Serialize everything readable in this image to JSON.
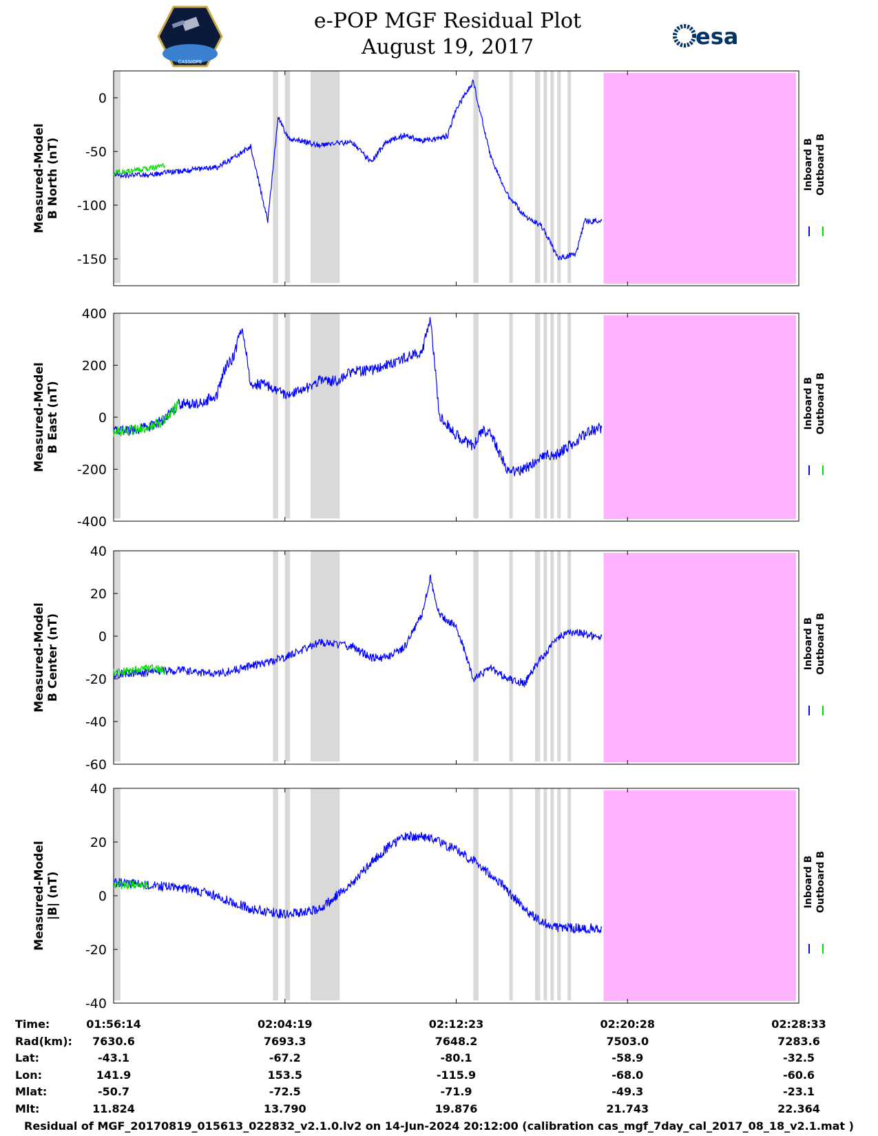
{
  "header": {
    "title_line1": "e-POP MGF Residual Plot",
    "title_line2": "August 19, 2017",
    "left_logo_caption": "CASSIOPE",
    "right_logo_text": "esa"
  },
  "colors": {
    "inboard": "#0000ff",
    "outboard": "#00dd00",
    "gap_shade": "#d9d9d9",
    "no_data": "#ffb3ff"
  },
  "chart_data": [
    {
      "type": "line",
      "ylabel_line1": "Measured-Model",
      "ylabel_line2": "B North (nT)",
      "ylim": [
        -175,
        25
      ],
      "yticks": [
        0,
        -50,
        -100,
        -150
      ],
      "legend": [
        "Inboard B",
        "Outboard B"
      ],
      "series": [
        {
          "name": "Inboard B",
          "x": [
            0,
            2,
            4,
            6,
            7,
            8,
            8.5,
            9,
            9.6,
            10.2,
            11,
            12,
            13,
            14,
            15,
            16,
            17,
            18,
            19,
            19.5,
            20,
            21,
            22,
            23,
            24,
            25,
            26,
            27,
            27.5,
            28,
            28.5
          ],
          "y": [
            -72,
            -72,
            -68,
            -65,
            -56,
            -45,
            -80,
            -115,
            -18,
            -38,
            -40,
            -45,
            -42,
            -42,
            -60,
            -40,
            -35,
            -40,
            -38,
            -35,
            -10,
            15,
            -55,
            -90,
            -110,
            -120,
            -150,
            -145,
            -115,
            -115,
            -113
          ]
        },
        {
          "name": "Outboard B",
          "x": [
            0,
            1,
            2,
            3
          ],
          "y": [
            -70,
            -68,
            -66,
            -63
          ]
        }
      ]
    },
    {
      "type": "line",
      "ylabel_line1": "Measured-Model",
      "ylabel_line2": "B East (nT)",
      "ylim": [
        -400,
        400
      ],
      "yticks": [
        400,
        200,
        0,
        -200,
        -400
      ],
      "legend": [
        "Inboard B",
        "Outboard B"
      ],
      "series": [
        {
          "name": "Inboard B",
          "x": [
            0,
            1,
            2,
            3,
            3.8,
            5,
            6,
            6.5,
            7,
            7.5,
            8,
            9,
            10,
            11,
            12,
            13,
            14,
            15,
            16,
            17,
            18,
            18.5,
            19,
            20,
            21,
            21.5,
            22,
            23,
            24,
            25,
            26,
            27,
            28,
            28.5
          ],
          "y": [
            -55,
            -50,
            -40,
            -10,
            50,
            55,
            80,
            190,
            230,
            350,
            130,
            120,
            90,
            100,
            140,
            140,
            175,
            180,
            200,
            230,
            245,
            390,
            10,
            -70,
            -110,
            -50,
            -60,
            -210,
            -200,
            -150,
            -140,
            -90,
            -50,
            -40
          ]
        },
        {
          "name": "Outboard B",
          "x": [
            0,
            1,
            2,
            3,
            3.8
          ],
          "y": [
            -55,
            -50,
            -40,
            -10,
            50
          ]
        }
      ]
    },
    {
      "type": "line",
      "ylabel_line1": "Measured-Model",
      "ylabel_line2": "B Center (nT)",
      "ylim": [
        -60,
        40
      ],
      "yticks": [
        40,
        20,
        0,
        -20,
        -40,
        -60
      ],
      "legend": [
        "Inboard B",
        "Outboard B"
      ],
      "series": [
        {
          "name": "Inboard B",
          "x": [
            0,
            2,
            4,
            6,
            8,
            10,
            12,
            14,
            15,
            16,
            17,
            18,
            18.5,
            19,
            20,
            21,
            22,
            23,
            24,
            25,
            26,
            27,
            28,
            28.5
          ],
          "y": [
            -18,
            -17,
            -16,
            -18,
            -14,
            -10,
            -3,
            -5,
            -10,
            -10,
            -5,
            10,
            28,
            10,
            5,
            -20,
            -15,
            -20,
            -22,
            -10,
            0,
            2,
            0,
            0
          ]
        },
        {
          "name": "Outboard B",
          "x": [
            0,
            1,
            2,
            3
          ],
          "y": [
            -17,
            -16,
            -15,
            -16
          ]
        }
      ]
    },
    {
      "type": "line",
      "ylabel_line1": "Measured-Model",
      "ylabel_line2": "|B| (nT)",
      "ylim": [
        -40,
        40
      ],
      "yticks": [
        40,
        20,
        0,
        -20,
        -40
      ],
      "legend": [
        "Inboard B",
        "Outboard B"
      ],
      "series": [
        {
          "name": "Inboard B",
          "x": [
            0,
            2,
            4,
            6,
            8,
            10,
            12,
            13,
            14,
            15,
            16,
            17,
            18,
            19,
            20,
            21,
            22,
            23,
            24,
            25,
            26,
            27,
            28,
            28.5
          ],
          "y": [
            5,
            4,
            3,
            0,
            -5,
            -7,
            -5,
            0,
            5,
            12,
            18,
            22,
            22,
            20,
            17,
            13,
            8,
            2,
            -5,
            -10,
            -12,
            -12,
            -12,
            -12
          ]
        },
        {
          "name": "Outboard B",
          "x": [
            0,
            1,
            2
          ],
          "y": [
            4,
            4,
            4
          ]
        }
      ]
    }
  ],
  "shading": {
    "gray_gaps": [
      [
        0,
        0.4
      ],
      [
        9.3,
        9.6
      ],
      [
        10.0,
        10.3
      ],
      [
        11.5,
        13.2
      ],
      [
        21.0,
        21.3
      ],
      [
        23.1,
        23.3
      ],
      [
        24.6,
        24.9
      ],
      [
        25.1,
        25.3
      ],
      [
        25.5,
        25.7
      ],
      [
        25.9,
        26.1
      ],
      [
        26.5,
        26.7
      ]
    ],
    "no_data_start": 28.6,
    "no_data_end": 40
  },
  "ephemeris": {
    "row_labels": [
      "Time:",
      "Rad(km):",
      "Lat:",
      "Lon:",
      "Mlat:",
      "Mlt:"
    ],
    "columns": [
      {
        "values": [
          "01:56:14",
          "7630.6",
          "-43.1",
          "141.9",
          "-50.7",
          "11.824"
        ]
      },
      {
        "values": [
          "02:04:19",
          "7693.3",
          "-67.2",
          "153.5",
          "-72.5",
          "13.790"
        ]
      },
      {
        "values": [
          "02:12:23",
          "7648.2",
          "-80.1",
          "-115.9",
          "-71.9",
          "19.876"
        ]
      },
      {
        "values": [
          "02:20:28",
          "7503.0",
          "-58.9",
          "-68.0",
          "-49.3",
          "21.743"
        ]
      },
      {
        "values": [
          "02:28:33",
          "7283.6",
          "-32.5",
          "-60.6",
          "-23.1",
          "22.364"
        ]
      }
    ]
  },
  "footer": {
    "text": "Residual of MGF_20170819_015613_022832_v2.1.0.lv2 on 14-Jun-2024 20:12:00 (calibration cas_mgf_7day_cal_2017_08_18_v2.1.mat )"
  }
}
